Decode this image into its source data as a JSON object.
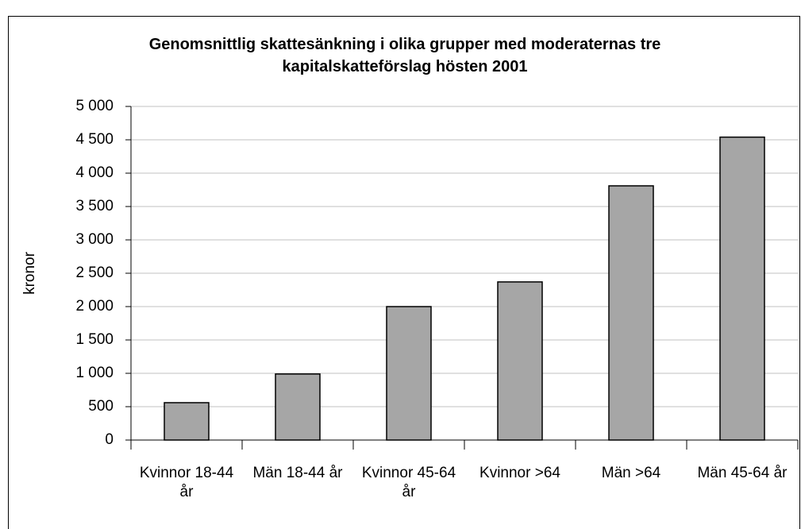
{
  "chart_data": {
    "type": "bar",
    "title": "Genomsnittlig skattesänkning i olika grupper med moderaternas tre kapitalskatteförslag hösten 2001",
    "y_label": "kronor",
    "categories": [
      "Kvinnor 18-44 år",
      "Män 18-44 år",
      "Kvinnor 45-64 år",
      "Kvinnor >64",
      "Män >64",
      "Män 45-64 år"
    ],
    "values": [
      560,
      990,
      2000,
      2370,
      3810,
      4540
    ],
    "color": "#a6a6a6",
    "ylim": [
      0,
      5000
    ],
    "yticks": [
      0,
      500,
      {
        "value": 1000,
        "label": "1 000"
      },
      {
        "value": 1500,
        "label": "1 500"
      },
      {
        "value": 2000,
        "label": "2 000"
      },
      {
        "value": 2500,
        "label": "2 500"
      },
      {
        "value": 3000,
        "label": "3 000"
      },
      {
        "value": 3500,
        "label": "3 500"
      },
      {
        "value": 4000,
        "label": "4 000"
      },
      {
        "value": 4500,
        "label": "4 500"
      },
      {
        "value": 5000,
        "label": "5 000"
      }
    ],
    "grid": true
  }
}
